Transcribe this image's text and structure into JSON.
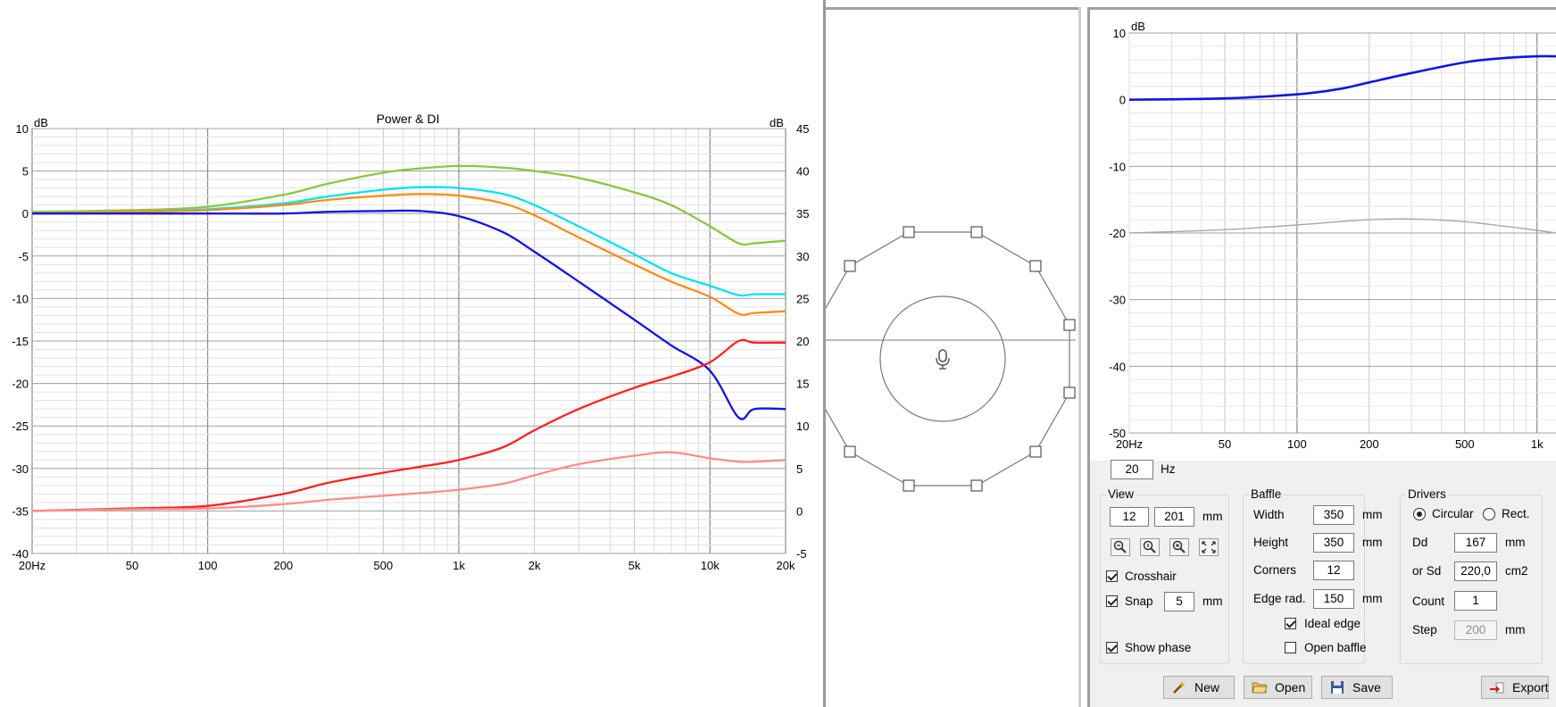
{
  "power_chart": {
    "title": "Power & DI",
    "left_unit": "dB",
    "right_unit": "dB",
    "y_left_ticks": [
      "10",
      "5",
      "0",
      "-5",
      "-10",
      "-15",
      "-20",
      "-25",
      "-30",
      "-35",
      "-40"
    ],
    "y_right_ticks": [
      "45",
      "40",
      "35",
      "30",
      "25",
      "20",
      "15",
      "10",
      "5",
      "0",
      "-5"
    ],
    "x_ticks": [
      "20Hz",
      "50",
      "100",
      "200",
      "500",
      "1k",
      "2k",
      "5k",
      "10k",
      "20k"
    ]
  },
  "chart_data": [
    {
      "type": "line",
      "title": "Power & DI",
      "xscale": "log",
      "xlim": [
        20,
        20000
      ],
      "ylim_left": [
        -40,
        10
      ],
      "ylim_right": [
        -5,
        45
      ],
      "x": [
        20,
        50,
        100,
        200,
        300,
        500,
        700,
        1000,
        1500,
        2000,
        3000,
        5000,
        7000,
        10000,
        13000,
        15000,
        20000
      ],
      "series": [
        {
          "color": "#8dc63f",
          "axis": "left",
          "values": [
            0.2,
            0.4,
            0.8,
            2.2,
            3.5,
            4.8,
            5.3,
            5.6,
            5.4,
            5.0,
            4.2,
            2.5,
            1.0,
            -1.5,
            -3.5,
            -3.5,
            -3.2
          ]
        },
        {
          "color": "#00e5ee",
          "axis": "left",
          "values": [
            0.0,
            0.2,
            0.5,
            1.2,
            2.0,
            2.8,
            3.1,
            3.0,
            2.3,
            1.0,
            -1.5,
            -4.8,
            -7.0,
            -8.5,
            -9.6,
            -9.5,
            -9.5
          ]
        },
        {
          "color": "#ff8c1a",
          "axis": "left",
          "values": [
            0.0,
            0.2,
            0.4,
            1.0,
            1.6,
            2.1,
            2.3,
            2.1,
            1.2,
            -0.2,
            -2.8,
            -6.0,
            -8.0,
            -9.8,
            -11.8,
            -11.7,
            -11.5
          ]
        },
        {
          "color": "#1414e0",
          "axis": "left",
          "values": [
            0.0,
            0.0,
            0.0,
            0.0,
            0.2,
            0.3,
            0.3,
            -0.3,
            -2.2,
            -4.5,
            -8.0,
            -12.5,
            -15.5,
            -18.5,
            -24.0,
            -23.0,
            -23.0
          ]
        },
        {
          "color": "#ff2020",
          "axis": "right",
          "values": [
            0.0,
            0.3,
            0.6,
            2.0,
            3.3,
            4.5,
            5.2,
            6.0,
            7.5,
            9.5,
            12.0,
            14.5,
            15.8,
            17.5,
            20.0,
            19.8,
            19.8
          ]
        },
        {
          "color": "#ff8c8c",
          "axis": "right",
          "values": [
            0.0,
            0.2,
            0.3,
            0.8,
            1.3,
            1.8,
            2.1,
            2.5,
            3.2,
            4.2,
            5.5,
            6.5,
            6.9,
            6.2,
            5.8,
            5.8,
            6.0
          ]
        }
      ]
    },
    {
      "type": "line",
      "xscale": "log",
      "xlim": [
        20,
        1200
      ],
      "ylim": [
        -50,
        10
      ],
      "x": [
        20,
        50,
        100,
        150,
        200,
        300,
        500,
        700,
        1000,
        1200
      ],
      "series": [
        {
          "color": "#1414e0",
          "values": [
            0.0,
            0.2,
            0.8,
            1.6,
            2.6,
            4.0,
            5.6,
            6.2,
            6.5,
            6.5
          ]
        },
        {
          "color": "#a8a8a8",
          "values": [
            -20.0,
            -19.5,
            -18.8,
            -18.3,
            -18.0,
            -17.9,
            -18.3,
            -18.9,
            -19.6,
            -20.0
          ]
        }
      ]
    }
  ],
  "baffle_view": {
    "icon": "microphone-icon",
    "polygon_vertex_count": 12
  },
  "response_chart": {
    "unit": "dB",
    "y_ticks": [
      "10",
      "0",
      "-10",
      "-20",
      "-30",
      "-40",
      "-50"
    ],
    "x_ticks": [
      "20Hz",
      "50",
      "100",
      "200",
      "500",
      "1k"
    ]
  },
  "controls": {
    "freq_value": "20",
    "freq_unit": "Hz",
    "view": {
      "title": "View",
      "x_value": "12",
      "y_value": "201",
      "unit": "mm",
      "crosshair_label": "Crosshair",
      "crosshair_checked": true,
      "snap_label": "Snap",
      "snap_checked": true,
      "snap_value": "5",
      "snap_unit": "mm",
      "show_phase_label": "Show phase",
      "show_phase_checked": true
    },
    "baffle": {
      "title": "Baffle",
      "width_label": "Width",
      "width_value": "350",
      "height_label": "Height",
      "height_value": "350",
      "corners_label": "Corners",
      "corners_value": "12",
      "edge_label": "Edge rad.",
      "edge_value": "150",
      "unit": "mm",
      "ideal_edge_label": "Ideal edge",
      "ideal_edge_checked": true,
      "open_baffle_label": "Open baffle",
      "open_baffle_checked": false
    },
    "drivers": {
      "title": "Drivers",
      "circular_label": "Circular",
      "rect_label": "Rect.",
      "shape_selected": "Circular",
      "dd_label": "Dd",
      "dd_value": "167",
      "dd_unit": "mm",
      "sd_label": "or Sd",
      "sd_value": "220,0",
      "sd_unit": "cm2",
      "count_label": "Count",
      "count_value": "1",
      "step_label": "Step",
      "step_value": "200",
      "step_unit": "mm"
    },
    "buttons": {
      "new_label": "New",
      "open_label": "Open",
      "save_label": "Save",
      "export_label": "Export"
    }
  }
}
